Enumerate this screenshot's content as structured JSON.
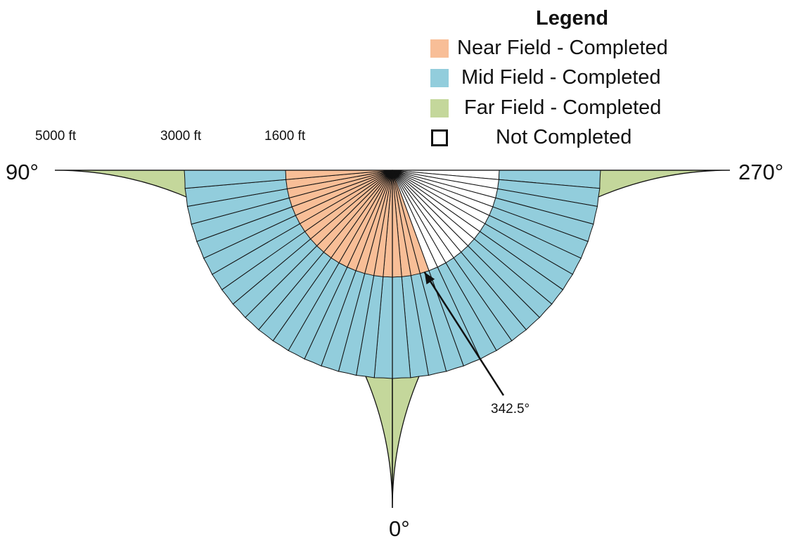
{
  "legend": {
    "title": "Legend",
    "items": [
      {
        "label": "Near Field - Completed",
        "color": "#F8BE97"
      },
      {
        "label": "Mid Field - Completed",
        "color": "#92CDDC"
      },
      {
        "label": "Far Field - Completed",
        "color": "#C4D79B"
      },
      {
        "label": "Not Completed",
        "color": "#FFFFFF"
      }
    ]
  },
  "distance_labels": {
    "far": "5000 ft",
    "mid": "3000 ft",
    "near": "1600 ft"
  },
  "direction_labels": {
    "left": "90°",
    "right": "270°",
    "bottom": "0°"
  },
  "callout": {
    "label": "342.5°"
  },
  "colors": {
    "near_completed": "#F8BE97",
    "mid_completed": "#92CDDC",
    "far_completed": "#C4D79B",
    "not_completed": "#FFFFFF",
    "line": "#111111"
  }
}
